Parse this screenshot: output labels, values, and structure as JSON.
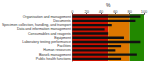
{
  "chart_data": {
    "type": "bar",
    "orientation": "horizontal",
    "title": "%",
    "categories": [
      "Organisation and management",
      "Documents",
      "Specimen collection, handling, and transport",
      "Data and information management",
      "Consumables and reagents",
      "Equipment",
      "Laboratory testing performance",
      "Facilities",
      "Human resources",
      "Biosek management",
      "Public health functions"
    ],
    "values": [
      95,
      88,
      55,
      45,
      50,
      72,
      95,
      68,
      60,
      90,
      68
    ],
    "color": "#111111",
    "xlim": [
      0,
      100
    ],
    "xticks": [
      0,
      20,
      40,
      60,
      80,
      100
    ],
    "bands": [
      {
        "from": 0,
        "to": 50,
        "color": "#cc1100"
      },
      {
        "from": 50,
        "to": 80,
        "color": "#dd7700"
      },
      {
        "from": 80,
        "to": 100,
        "color": "#228800"
      }
    ],
    "grid": false
  }
}
